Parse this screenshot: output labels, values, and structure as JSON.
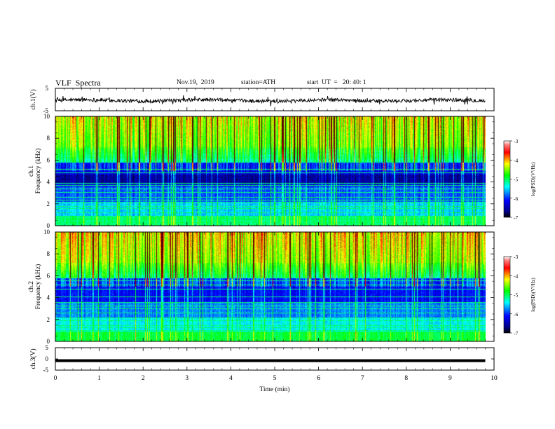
{
  "header": {
    "title": "VLF  Spectra",
    "date": "Nov.19,  2019",
    "station": "station=ATH",
    "start_ut": "start  UT  =   20: 40: 1"
  },
  "chart_data": [
    {
      "type": "line",
      "panel": "ch1-waveform",
      "ylabel": "ch.1(V)",
      "ylim": [
        -5,
        5
      ],
      "y_ticks": [
        "5",
        "-5"
      ],
      "xlim": [
        0,
        10
      ],
      "series": [
        {
          "values": []
        }
      ]
    },
    {
      "type": "heatmap",
      "panel": "ch1-spectrogram",
      "ylabel": "ch.1\nFrequency  (kHz)",
      "ylabel_lines": [
        "ch.1",
        "Frequency  (kHz)"
      ],
      "ylim": [
        0,
        10
      ],
      "y_ticks": [
        "0",
        "2",
        "4",
        "6",
        "8",
        "10"
      ],
      "xlim": [
        0,
        9.8
      ],
      "colorbar": {
        "label": "log(PSD)(V²/Hz)",
        "ticks": [
          "-3",
          "-4",
          "-5",
          "-6",
          "-7"
        ],
        "range": [
          -7,
          -3
        ]
      }
    },
    {
      "type": "heatmap",
      "panel": "ch2-spectrogram",
      "ylabel": "ch.2\nFrequency  (kHz)",
      "ylabel_lines": [
        "ch.2",
        "Frequency  (kHz)"
      ],
      "ylim": [
        0,
        10
      ],
      "y_ticks": [
        "0",
        "2",
        "4",
        "6",
        "8",
        "10"
      ],
      "xlim": [
        0,
        9.8
      ],
      "colorbar": {
        "label": "log(PSD)(V²/Hz)",
        "ticks": [
          "-3",
          "-4",
          "-5",
          "-6",
          "-7"
        ],
        "range": [
          -7,
          -3
        ]
      }
    },
    {
      "type": "line",
      "panel": "ch3-waveform",
      "ylabel": "ch.3(V)",
      "ylim": [
        -5,
        5
      ],
      "y_ticks": [
        "5",
        "0",
        "-5"
      ],
      "xlim": [
        0,
        10
      ],
      "series": [
        {
          "values": [
            -0.8,
            -0.8
          ]
        }
      ]
    }
  ],
  "x_axis": {
    "label": "Time  (min)",
    "ticks": [
      "0",
      "1",
      "2",
      "3",
      "4",
      "5",
      "6",
      "7",
      "8",
      "9",
      "10"
    ],
    "range": [
      0,
      10
    ]
  },
  "colors": {
    "low": "#000000",
    "blue": "#0000ff",
    "cyan": "#00ffff",
    "green": "#00ff00",
    "yellow": "#ffff00",
    "red": "#ff0000",
    "dark_red": "#800000"
  }
}
